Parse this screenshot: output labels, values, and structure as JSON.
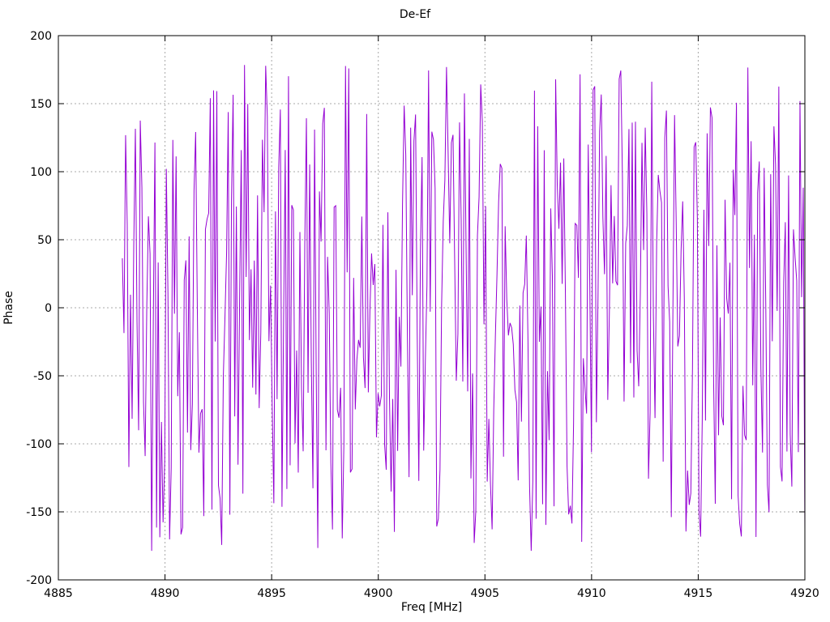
{
  "page": {
    "background": "#ffffff"
  },
  "chart_data": {
    "type": "line",
    "title": "De-Ef",
    "xlabel": "Freq [MHz]",
    "ylabel": "Phase",
    "xlim": [
      4885,
      4920
    ],
    "ylim": [
      -200,
      200
    ],
    "x_ticks": [
      4885,
      4890,
      4895,
      4900,
      4905,
      4910,
      4915,
      4920
    ],
    "y_ticks": [
      -200,
      -150,
      -100,
      -50,
      0,
      50,
      100,
      150,
      200
    ],
    "grid": true,
    "grid_style": "dotted",
    "legend": "none",
    "colors": {
      "series": "#9400d3",
      "grid": "#a8a8a8",
      "axis": "#000000",
      "text": "#000000"
    },
    "series": [
      {
        "name": "phase",
        "description": "wrapped phase noise, values uniformly scattered between -180 and 180 degrees",
        "color": "#9400d3",
        "x_start": 4888.0,
        "x_end": 4920.0,
        "n_points": 420,
        "y_min": -180,
        "y_max": 180,
        "seed": 42
      }
    ]
  }
}
